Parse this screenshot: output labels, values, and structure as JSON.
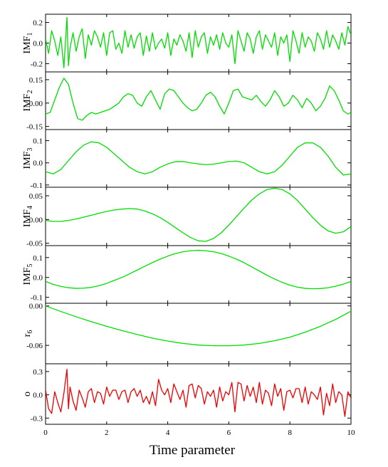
{
  "chart_data": {
    "type": "line",
    "xlabel": "Time parameter",
    "x_range": [
      0,
      10
    ],
    "x_ticks": [
      "0",
      "2",
      "4",
      "6",
      "8",
      "10"
    ],
    "grid": false,
    "legend": "none",
    "panels": [
      {
        "key": "imf1",
        "ylabel": "IMF",
        "ylabel_sub": "1",
        "color": "#00dd00",
        "ylim": [
          -0.28,
          0.28
        ],
        "yticks": [
          0.2,
          0.0,
          -0.2
        ],
        "ytick_labels": [
          "0.2",
          "0.0",
          "-0.2"
        ],
        "x": [
          0.0,
          0.1,
          0.2,
          0.3,
          0.4,
          0.5,
          0.6,
          0.7,
          0.75,
          0.8,
          0.9,
          1.0,
          1.1,
          1.2,
          1.3,
          1.4,
          1.5,
          1.6,
          1.7,
          1.8,
          1.9,
          2.0,
          2.1,
          2.2,
          2.3,
          2.4,
          2.5,
          2.6,
          2.7,
          2.8,
          2.9,
          3.0,
          3.1,
          3.2,
          3.3,
          3.4,
          3.5,
          3.6,
          3.7,
          3.8,
          3.9,
          4.0,
          4.1,
          4.2,
          4.3,
          4.4,
          4.5,
          4.6,
          4.7,
          4.8,
          4.9,
          5.0,
          5.1,
          5.2,
          5.3,
          5.4,
          5.5,
          5.6,
          5.7,
          5.8,
          5.9,
          6.0,
          6.1,
          6.2,
          6.3,
          6.4,
          6.5,
          6.6,
          6.7,
          6.8,
          6.9,
          7.0,
          7.1,
          7.2,
          7.3,
          7.4,
          7.5,
          7.6,
          7.7,
          7.8,
          7.9,
          8.0,
          8.1,
          8.2,
          8.3,
          8.4,
          8.5,
          8.6,
          8.7,
          8.8,
          8.9,
          9.0,
          9.1,
          9.2,
          9.3,
          9.4,
          9.5,
          9.6,
          9.7,
          9.8,
          9.9,
          10.0
        ],
        "y": [
          0.04,
          -0.1,
          0.12,
          0.02,
          -0.12,
          0.06,
          -0.24,
          0.25,
          -0.22,
          -0.05,
          0.1,
          -0.08,
          0.06,
          0.14,
          -0.15,
          0.08,
          -0.02,
          0.12,
          0.06,
          -0.04,
          0.1,
          -0.12,
          0.1,
          0.12,
          -0.06,
          0.0,
          -0.1,
          0.12,
          -0.04,
          0.08,
          -0.05,
          0.06,
          0.1,
          -0.12,
          0.07,
          -0.08,
          0.1,
          -0.06,
          0.0,
          0.04,
          -0.05,
          0.1,
          -0.12,
          0.04,
          -0.02,
          0.08,
          0.02,
          -0.08,
          0.1,
          -0.14,
          0.12,
          -0.04,
          0.06,
          0.1,
          -0.1,
          0.06,
          -0.02,
          0.08,
          -0.06,
          0.1,
          0.0,
          -0.04,
          0.08,
          -0.2,
          0.12,
          0.02,
          -0.08,
          0.1,
          0.04,
          -0.1,
          0.06,
          0.12,
          -0.06,
          0.08,
          0.02,
          -0.04,
          0.1,
          -0.12,
          0.06,
          0.0,
          0.08,
          -0.18,
          0.12,
          0.02,
          -0.1,
          0.1,
          -0.04,
          0.06,
          0.02,
          -0.08,
          0.1,
          0.04,
          -0.06,
          0.12,
          -0.04,
          0.08,
          0.02,
          -0.06,
          0.1,
          -0.02,
          0.16,
          0.08
        ],
        "frame": [
          64,
          20,
          493,
          101
        ]
      },
      {
        "key": "imf2",
        "ylabel": "IMF",
        "ylabel_sub": "2",
        "color": "#00dd00",
        "ylim": [
          -0.17,
          0.2
        ],
        "yticks": [
          0.15,
          0.0,
          -0.15
        ],
        "ytick_labels": [
          "0.15",
          "0.00",
          "-0.15"
        ],
        "x": [
          0.0,
          0.15,
          0.3,
          0.45,
          0.6,
          0.75,
          0.9,
          1.05,
          1.2,
          1.35,
          1.5,
          1.65,
          1.8,
          1.95,
          2.1,
          2.25,
          2.4,
          2.55,
          2.7,
          2.85,
          3.0,
          3.15,
          3.3,
          3.45,
          3.6,
          3.75,
          3.9,
          4.05,
          4.2,
          4.35,
          4.5,
          4.65,
          4.8,
          4.95,
          5.1,
          5.25,
          5.4,
          5.55,
          5.7,
          5.85,
          6.0,
          6.15,
          6.3,
          6.45,
          6.6,
          6.75,
          6.9,
          7.05,
          7.2,
          7.35,
          7.5,
          7.65,
          7.8,
          7.95,
          8.1,
          8.25,
          8.4,
          8.55,
          8.7,
          8.85,
          9.0,
          9.15,
          9.3,
          9.45,
          9.6,
          9.75,
          9.9,
          10.0
        ],
        "y": [
          -0.07,
          -0.06,
          0.02,
          0.1,
          0.16,
          0.12,
          0.0,
          -0.1,
          -0.11,
          -0.08,
          -0.06,
          -0.07,
          -0.06,
          -0.05,
          -0.04,
          -0.02,
          0.0,
          0.04,
          0.06,
          0.05,
          0.0,
          -0.02,
          0.04,
          0.08,
          0.02,
          -0.04,
          0.06,
          0.09,
          0.08,
          0.04,
          0.0,
          -0.03,
          -0.05,
          -0.04,
          0.0,
          0.05,
          0.07,
          0.04,
          -0.02,
          -0.07,
          0.0,
          0.08,
          0.09,
          0.04,
          0.03,
          0.02,
          0.05,
          0.01,
          -0.02,
          0.02,
          0.08,
          0.04,
          -0.02,
          0.0,
          0.05,
          0.02,
          -0.03,
          0.03,
          0.0,
          -0.05,
          -0.02,
          0.03,
          0.11,
          0.08,
          0.02,
          -0.05,
          -0.07,
          -0.06
        ],
        "frame": [
          64,
          101,
          493,
          182
        ]
      },
      {
        "key": "imf3",
        "ylabel": "IMF",
        "ylabel_sub": "3",
        "color": "#00dd00",
        "ylim": [
          -0.11,
          0.15
        ],
        "yticks": [
          0.1,
          0.0,
          -0.1
        ],
        "ytick_labels": [
          "0.1",
          "0.0",
          "-0.1"
        ],
        "x": [
          0.0,
          0.25,
          0.5,
          0.75,
          1.0,
          1.25,
          1.5,
          1.75,
          2.0,
          2.25,
          2.5,
          2.75,
          3.0,
          3.25,
          3.5,
          3.75,
          4.0,
          4.25,
          4.5,
          4.75,
          5.0,
          5.25,
          5.5,
          5.75,
          6.0,
          6.25,
          6.5,
          6.75,
          7.0,
          7.25,
          7.5,
          7.75,
          8.0,
          8.25,
          8.5,
          8.75,
          9.0,
          9.25,
          9.5,
          9.75,
          10.0
        ],
        "y": [
          -0.04,
          -0.05,
          -0.03,
          0.01,
          0.05,
          0.08,
          0.095,
          0.09,
          0.07,
          0.04,
          0.01,
          -0.02,
          -0.04,
          -0.05,
          -0.04,
          -0.02,
          -0.005,
          0.005,
          0.006,
          0.0,
          -0.005,
          -0.008,
          -0.006,
          0.0,
          0.006,
          0.008,
          0.0,
          -0.02,
          -0.04,
          -0.05,
          -0.04,
          -0.01,
          0.03,
          0.07,
          0.09,
          0.09,
          0.07,
          0.03,
          -0.02,
          -0.055,
          -0.05
        ],
        "frame": [
          64,
          182,
          493,
          263
        ]
      },
      {
        "key": "imf4",
        "ylabel": "IMF",
        "ylabel_sub": "4",
        "color": "#00dd00",
        "ylim": [
          -0.055,
          0.068
        ],
        "yticks": [
          0.05,
          0.0,
          -0.05
        ],
        "ytick_labels": [
          "0.05",
          "0.00",
          "-0.05"
        ],
        "x": [
          0.0,
          0.25,
          0.5,
          0.75,
          1.0,
          1.25,
          1.5,
          1.75,
          2.0,
          2.25,
          2.5,
          2.75,
          3.0,
          3.25,
          3.5,
          3.75,
          4.0,
          4.25,
          4.5,
          4.75,
          5.0,
          5.25,
          5.5,
          5.75,
          6.0,
          6.25,
          6.5,
          6.75,
          7.0,
          7.25,
          7.5,
          7.75,
          8.0,
          8.25,
          8.5,
          8.75,
          9.0,
          9.25,
          9.5,
          9.75,
          10.0
        ],
        "y": [
          -0.002,
          -0.004,
          -0.004,
          -0.002,
          0.001,
          0.005,
          0.009,
          0.013,
          0.017,
          0.02,
          0.022,
          0.023,
          0.022,
          0.018,
          0.012,
          0.004,
          -0.006,
          -0.017,
          -0.028,
          -0.038,
          -0.045,
          -0.046,
          -0.04,
          -0.028,
          -0.012,
          0.006,
          0.024,
          0.041,
          0.054,
          0.063,
          0.066,
          0.063,
          0.054,
          0.04,
          0.022,
          0.004,
          -0.012,
          -0.024,
          -0.029,
          -0.026,
          -0.015
        ],
        "frame": [
          64,
          263,
          493,
          345
        ]
      },
      {
        "key": "imf5",
        "ylabel": "IMF",
        "ylabel_sub": "5",
        "color": "#00dd00",
        "ylim": [
          -0.13,
          0.16
        ],
        "yticks": [
          0.1,
          0.0,
          -0.1
        ],
        "ytick_labels": [
          "0.1",
          "0.0",
          "-0.1"
        ],
        "x": [
          0.0,
          0.25,
          0.5,
          0.75,
          1.0,
          1.25,
          1.5,
          1.75,
          2.0,
          2.25,
          2.5,
          2.75,
          3.0,
          3.25,
          3.5,
          3.75,
          4.0,
          4.25,
          4.5,
          4.75,
          5.0,
          5.25,
          5.5,
          5.75,
          6.0,
          6.25,
          6.5,
          6.75,
          7.0,
          7.25,
          7.5,
          7.75,
          8.0,
          8.25,
          8.5,
          8.75,
          9.0,
          9.25,
          9.5,
          9.75,
          10.0
        ],
        "y": [
          -0.02,
          -0.035,
          -0.045,
          -0.052,
          -0.055,
          -0.054,
          -0.05,
          -0.042,
          -0.03,
          -0.015,
          0.0,
          0.018,
          0.037,
          0.056,
          0.075,
          0.092,
          0.107,
          0.12,
          0.129,
          0.134,
          0.136,
          0.134,
          0.129,
          0.12,
          0.107,
          0.092,
          0.074,
          0.053,
          0.032,
          0.011,
          -0.008,
          -0.025,
          -0.039,
          -0.049,
          -0.055,
          -0.057,
          -0.056,
          -0.052,
          -0.044,
          -0.034,
          -0.02
        ],
        "frame": [
          64,
          345,
          493,
          426
        ]
      },
      {
        "key": "r6",
        "ylabel": "r",
        "ylabel_sub": "6",
        "color": "#00dd00",
        "ylim": [
          -0.088,
          0.004
        ],
        "yticks": [
          0.0,
          -0.06
        ],
        "ytick_labels": [
          "0.00",
          "-0.06"
        ],
        "x": [
          0.0,
          0.5,
          1.0,
          1.5,
          2.0,
          2.5,
          3.0,
          3.5,
          4.0,
          4.5,
          5.0,
          5.5,
          6.0,
          6.5,
          7.0,
          7.5,
          8.0,
          8.5,
          9.0,
          9.5,
          10.0
        ],
        "y": [
          0.0,
          -0.0085,
          -0.0165,
          -0.024,
          -0.031,
          -0.0375,
          -0.0435,
          -0.049,
          -0.0535,
          -0.057,
          -0.0595,
          -0.0605,
          -0.0605,
          -0.0595,
          -0.057,
          -0.053,
          -0.0475,
          -0.04,
          -0.031,
          -0.0205,
          -0.008
        ],
        "frame": [
          64,
          426,
          493,
          511
        ]
      },
      {
        "key": "o",
        "ylabel": "o",
        "ylabel_sub": "",
        "color": "#ee0000",
        "ylim": [
          -0.38,
          0.4
        ],
        "yticks": [
          0.3,
          0.0,
          -0.3
        ],
        "ytick_labels": [
          "0.3",
          "0.0",
          "-0.3"
        ],
        "x": [
          0.0,
          0.1,
          0.2,
          0.3,
          0.4,
          0.5,
          0.6,
          0.7,
          0.75,
          0.8,
          0.9,
          1.0,
          1.1,
          1.2,
          1.3,
          1.4,
          1.5,
          1.6,
          1.7,
          1.8,
          1.9,
          2.0,
          2.1,
          2.2,
          2.3,
          2.4,
          2.5,
          2.6,
          2.7,
          2.8,
          2.9,
          3.0,
          3.1,
          3.2,
          3.3,
          3.4,
          3.5,
          3.6,
          3.7,
          3.8,
          3.9,
          4.0,
          4.1,
          4.2,
          4.3,
          4.4,
          4.5,
          4.6,
          4.7,
          4.8,
          4.9,
          5.0,
          5.1,
          5.2,
          5.3,
          5.4,
          5.5,
          5.6,
          5.7,
          5.8,
          5.9,
          6.0,
          6.1,
          6.2,
          6.3,
          6.4,
          6.5,
          6.6,
          6.7,
          6.8,
          6.9,
          7.0,
          7.1,
          7.2,
          7.3,
          7.4,
          7.5,
          7.6,
          7.7,
          7.8,
          7.9,
          8.0,
          8.1,
          8.2,
          8.3,
          8.4,
          8.5,
          8.6,
          8.7,
          8.8,
          8.9,
          9.0,
          9.1,
          9.2,
          9.3,
          9.4,
          9.5,
          9.6,
          9.7,
          9.8,
          9.9,
          10.0
        ],
        "y": [
          0.06,
          -0.18,
          -0.24,
          0.04,
          -0.1,
          -0.22,
          0.02,
          0.33,
          -0.18,
          0.1,
          -0.08,
          -0.2,
          0.06,
          -0.04,
          -0.16,
          0.04,
          0.08,
          -0.1,
          0.04,
          0.02,
          -0.12,
          0.1,
          -0.02,
          0.06,
          0.06,
          -0.06,
          0.04,
          0.06,
          -0.1,
          0.04,
          0.08,
          -0.02,
          0.06,
          -0.1,
          -0.02,
          -0.12,
          0.04,
          -0.14,
          0.2,
          0.06,
          0.0,
          0.08,
          -0.1,
          0.14,
          0.04,
          -0.06,
          0.06,
          -0.16,
          0.12,
          0.14,
          -0.04,
          0.12,
          0.08,
          -0.12,
          0.04,
          -0.02,
          0.06,
          -0.16,
          0.1,
          -0.08,
          0.04,
          0.0,
          0.16,
          -0.22,
          0.16,
          0.14,
          -0.08,
          0.12,
          -0.02,
          0.1,
          -0.1,
          0.16,
          -0.12,
          0.06,
          0.02,
          -0.14,
          0.14,
          -0.02,
          0.08,
          -0.2,
          0.04,
          0.06,
          -0.04,
          0.08,
          0.08,
          -0.1,
          0.1,
          -0.12,
          0.04,
          0.0,
          -0.06,
          0.1,
          -0.26,
          0.02,
          -0.14,
          0.14,
          -0.1,
          0.04,
          0.0,
          -0.28,
          0.04,
          -0.04
        ]
      }
    ]
  }
}
